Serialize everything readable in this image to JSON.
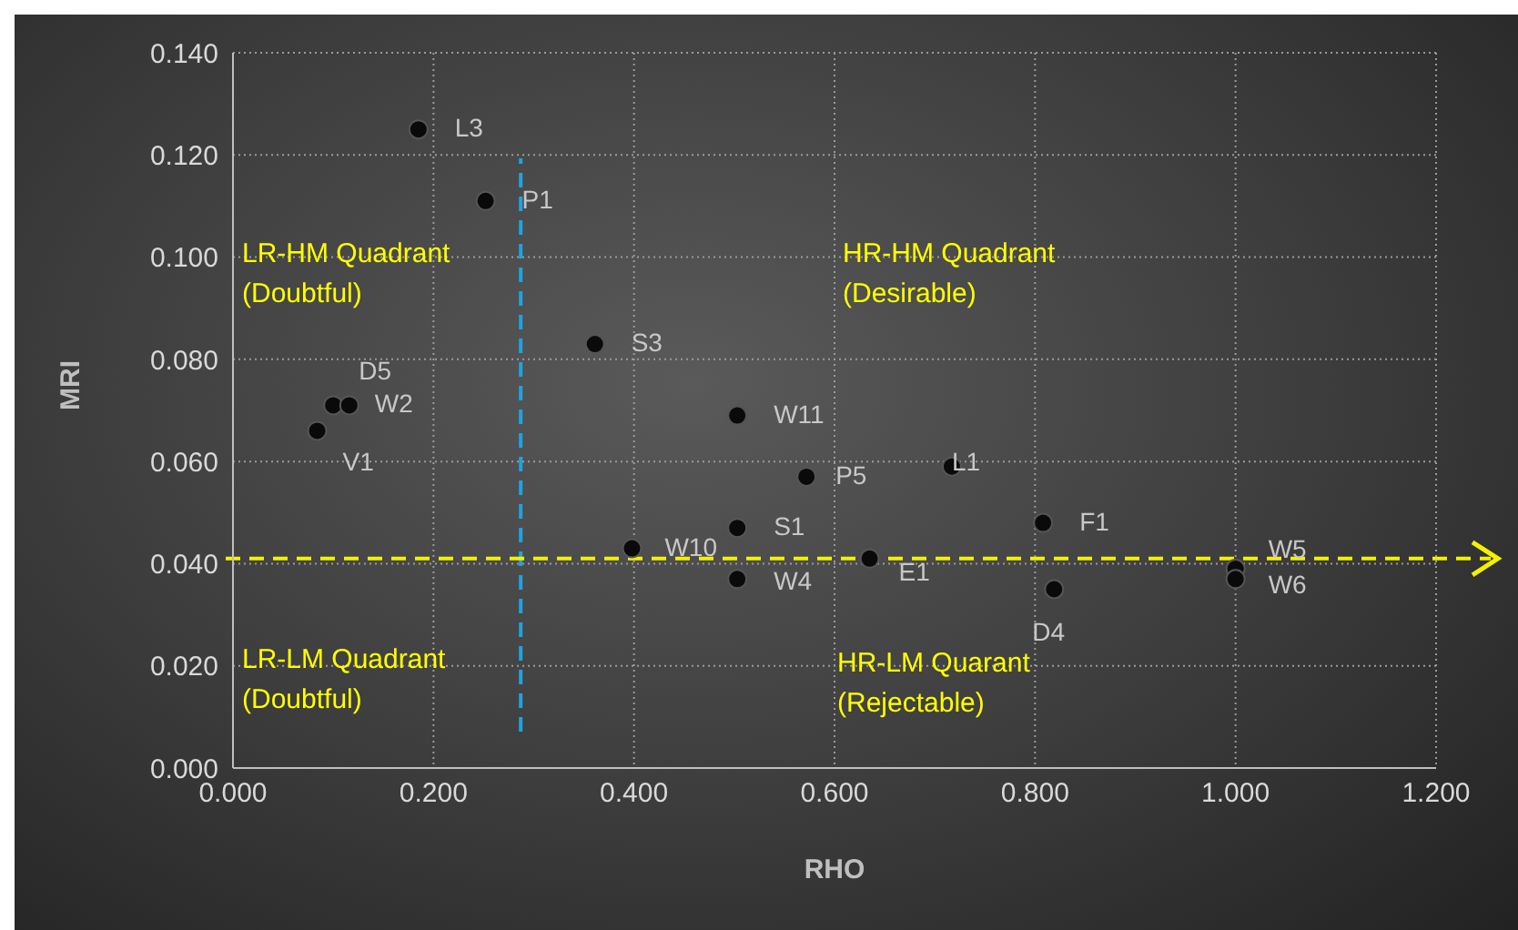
{
  "chart_data": {
    "type": "scatter",
    "xlabel": "RHO",
    "ylabel": "MRI",
    "x": [
      0.185,
      0.252,
      0.361,
      0.1,
      0.116,
      0.084,
      0.503,
      0.572,
      0.717,
      0.503,
      0.398,
      0.635,
      0.503,
      0.808,
      0.819,
      1.0,
      1.0
    ],
    "series": [
      {
        "color": "#0a0a0a",
        "values": [
          0.125,
          0.111,
          0.083,
          0.071,
          0.071,
          0.066,
          0.069,
          0.057,
          0.059,
          0.047,
          0.043,
          0.041,
          0.037,
          0.048,
          0.035,
          0.039,
          0.037
        ]
      }
    ],
    "xlim": [
      0,
      1.2
    ],
    "xticks": [
      {
        "value": 0,
        "label": "0.000"
      },
      {
        "value": 0.2,
        "label": "0.200"
      },
      {
        "value": 0.4,
        "label": "0.400"
      },
      {
        "value": 0.6,
        "label": "0.600"
      },
      {
        "value": 0.8,
        "label": "0.800"
      },
      {
        "value": 1.0,
        "label": "1.000"
      },
      {
        "value": 1.2,
        "label": "1.200"
      }
    ],
    "ylim": [
      0,
      0.14
    ],
    "yticks": [
      {
        "value": 0,
        "label": "0.000"
      },
      {
        "value": 0.02,
        "label": "0.020"
      },
      {
        "value": 0.04,
        "label": "0.040"
      },
      {
        "value": 0.06,
        "label": "0.060"
      },
      {
        "value": 0.08,
        "label": "0.080"
      },
      {
        "value": 0.1,
        "label": "0.100"
      },
      {
        "value": 0.12,
        "label": "0.120"
      },
      {
        "value": 0.14,
        "label": "0.140"
      }
    ],
    "grid": true,
    "marker": "circle",
    "legend": false,
    "ref_lines": [
      {
        "axis": "x",
        "value": 0.287,
        "color": "#1fa3e0",
        "line_style": "dashed"
      },
      {
        "axis": "y",
        "value": 0.041,
        "color": "#f2f200",
        "line_style": "dashed"
      }
    ],
    "annotations": [
      {
        "text": "L3",
        "x": 0.185,
        "y": 0.125
      },
      {
        "text": "P1",
        "x": 0.252,
        "y": 0.111
      },
      {
        "text": "S3",
        "x": 0.361,
        "y": 0.083
      },
      {
        "text": "D5",
        "x": 0.1,
        "y": 0.071
      },
      {
        "text": "W2",
        "x": 0.116,
        "y": 0.071
      },
      {
        "text": "V1",
        "x": 0.084,
        "y": 0.066
      },
      {
        "text": "W11",
        "x": 0.503,
        "y": 0.069
      },
      {
        "text": "P5",
        "x": 0.572,
        "y": 0.057
      },
      {
        "text": "L1",
        "x": 0.717,
        "y": 0.059
      },
      {
        "text": "S1",
        "x": 0.503,
        "y": 0.047
      },
      {
        "text": "W10",
        "x": 0.398,
        "y": 0.043
      },
      {
        "text": "E1",
        "x": 0.635,
        "y": 0.041
      },
      {
        "text": "W4",
        "x": 0.503,
        "y": 0.037
      },
      {
        "text": "F1",
        "x": 0.808,
        "y": 0.048
      },
      {
        "text": "D4",
        "x": 0.819,
        "y": 0.035
      },
      {
        "text": "W5",
        "x": 1.0,
        "y": 0.039
      },
      {
        "text": "W6",
        "x": 1.0,
        "y": 0.037
      },
      "LR-HM Quadrant (Doubtful)",
      "HR-HM Quadrant (Desirable)",
      "LR-LM Quadrant (Doubtful)",
      "HR-LM Quarant (Rejectable)"
    ]
  }
}
